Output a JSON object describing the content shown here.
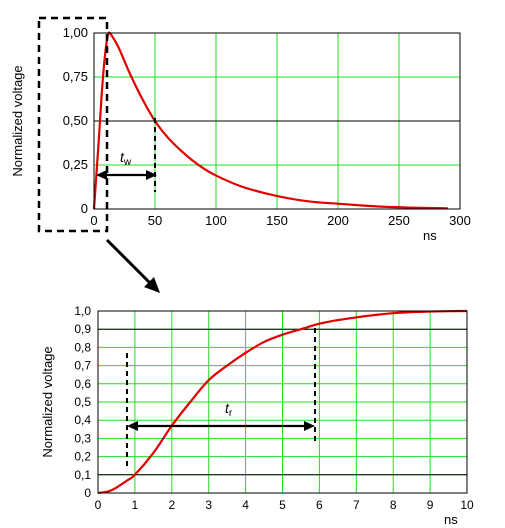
{
  "chart_data": [
    {
      "type": "line",
      "title": "",
      "xlabel": "ns",
      "ylabel": "Normalized voltage",
      "xlim": [
        0,
        300
      ],
      "ylim": [
        0,
        1
      ],
      "x_ticks": [
        "0",
        "50",
        "100",
        "150",
        "200",
        "250",
        "300"
      ],
      "y_ticks": [
        "0",
        "0,25",
        "0,50",
        "0,75",
        "1,00"
      ],
      "grid": true,
      "reference_lines_y": [
        0.5
      ],
      "series": [
        {
          "color": "#e00000",
          "x": [
            0,
            2,
            4,
            6,
            8,
            10,
            12,
            15,
            20,
            25,
            30,
            40,
            50,
            60,
            70,
            80,
            90,
            100,
            120,
            140,
            160,
            180,
            200,
            220,
            240,
            260,
            280,
            290
          ],
          "y": [
            0.0,
            0.2,
            0.4,
            0.62,
            0.8,
            0.93,
            1.0,
            0.98,
            0.92,
            0.84,
            0.76,
            0.62,
            0.5,
            0.41,
            0.34,
            0.28,
            0.23,
            0.19,
            0.13,
            0.09,
            0.06,
            0.04,
            0.03,
            0.02,
            0.012,
            0.008,
            0.005,
            0.004
          ]
        }
      ],
      "annotations": [
        {
          "label": "t",
          "subscript": "w",
          "type": "width-dimension",
          "x_from": 0,
          "x_to": 50,
          "y": 0.25
        }
      ]
    },
    {
      "type": "line",
      "title": "",
      "xlabel": "ns",
      "ylabel": "Normalized voltage",
      "xlim": [
        0,
        10
      ],
      "ylim": [
        0,
        1
      ],
      "x_ticks": [
        "0",
        "1",
        "2",
        "3",
        "4",
        "5",
        "6",
        "7",
        "8",
        "9",
        "10"
      ],
      "y_ticks": [
        "0",
        "0,1",
        "0,2",
        "0,3",
        "0,4",
        "0,5",
        "0,6",
        "0,7",
        "0,8",
        "0,9",
        "1,0"
      ],
      "grid": true,
      "reference_lines_y": [
        0.1,
        0.9
      ],
      "series": [
        {
          "color": "#e00000",
          "x": [
            0,
            0.3,
            0.5,
            0.8,
            1,
            1.5,
            2,
            2.5,
            3,
            3.5,
            4,
            4.5,
            5,
            5.5,
            6,
            6.5,
            7,
            7.5,
            8,
            8.5,
            9,
            9.5,
            10
          ],
          "y": [
            0.0,
            0.01,
            0.03,
            0.07,
            0.1,
            0.22,
            0.37,
            0.5,
            0.62,
            0.7,
            0.77,
            0.83,
            0.87,
            0.9,
            0.93,
            0.95,
            0.965,
            0.978,
            0.988,
            0.994,
            0.997,
            0.999,
            1.0
          ]
        }
      ],
      "annotations": [
        {
          "label": "t",
          "subscript": "r",
          "type": "width-dimension",
          "x_from": 0.8,
          "x_to": 5.8,
          "y": 0.38
        }
      ]
    }
  ]
}
